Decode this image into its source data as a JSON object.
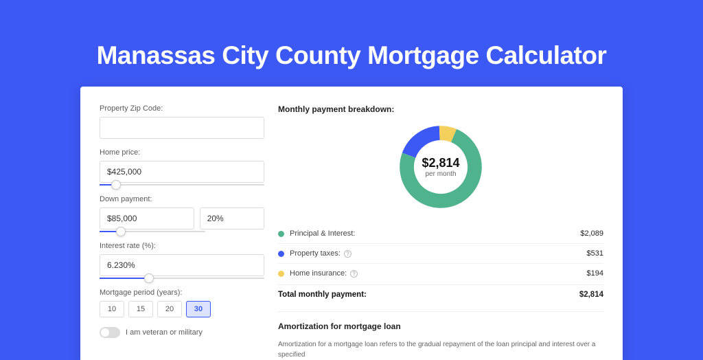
{
  "page": {
    "title": "Manassas City County Mortgage Calculator",
    "background_color": "#3d59f5"
  },
  "form": {
    "zip": {
      "label": "Property Zip Code:",
      "value": ""
    },
    "home_price": {
      "label": "Home price:",
      "value": "$425,000",
      "slider_fill_pct": 10
    },
    "down_payment": {
      "label": "Down payment:",
      "amount": "$85,000",
      "percent": "20%",
      "slider_fill_pct": 20
    },
    "interest_rate": {
      "label": "Interest rate (%):",
      "value": "6.230%",
      "slider_fill_pct": 30
    },
    "period": {
      "label": "Mortgage period (years):",
      "options": [
        "10",
        "15",
        "20",
        "30"
      ],
      "selected": "30"
    },
    "veteran": {
      "label": "I am veteran or military",
      "checked": false
    }
  },
  "breakdown": {
    "title": "Monthly payment breakdown:",
    "center_amount": "$2,814",
    "center_sub": "per month",
    "donut": {
      "segments": [
        {
          "name": "principal_interest",
          "value": 2089,
          "color": "#4fb38d"
        },
        {
          "name": "property_taxes",
          "value": 531,
          "color": "#3d59f5"
        },
        {
          "name": "home_insurance",
          "value": 194,
          "color": "#f3cf5b"
        }
      ],
      "stroke_width": 16
    },
    "rows": [
      {
        "key": "principal_interest",
        "label": "Principal & Interest:",
        "amount": "$2,089",
        "color": "#4fb38d",
        "info": false
      },
      {
        "key": "property_taxes",
        "label": "Property taxes:",
        "amount": "$531",
        "color": "#3d59f5",
        "info": true
      },
      {
        "key": "home_insurance",
        "label": "Home insurance:",
        "amount": "$194",
        "color": "#f3cf5b",
        "info": true
      }
    ],
    "total": {
      "label": "Total monthly payment:",
      "amount": "$2,814"
    }
  },
  "amortization": {
    "title": "Amortization for mortgage loan",
    "text": "Amortization for a mortgage loan refers to the gradual repayment of the loan principal and interest over a specified"
  }
}
